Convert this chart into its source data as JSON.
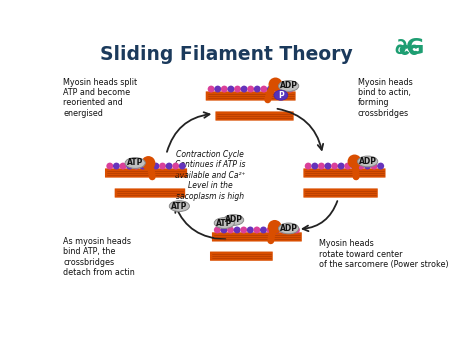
{
  "title": "Sliding Filament Theory",
  "title_color": "#1b3a5c",
  "title_fontsize": 13.5,
  "bg_color": "#ffffff",
  "orange_color": "#d94e00",
  "orange_dark": "#b03a00",
  "orange_stripe": "#e87030",
  "head_color": "#d94e00",
  "pink_color": "#d9409a",
  "purple_color": "#6633bb",
  "adp_fill": "#c8c8c8",
  "atp_fill": "#c8c8c8",
  "p_fill": "#5533bb",
  "arrow_color": "#222222",
  "text_color": "#111111",
  "center_text": "Contraction Cycle\nContinues if ATP is\navailable and Ca²⁺\nLevel in the\nsacoplasm is high",
  "label_tl": "Myosin heads split\nATP and become\nreoriented and\nenergised",
  "label_tr": "Myosin heads\nbind to actin,\nforming\ncrossbridges",
  "label_bl": "As myosin heads\nbind ATP, the\ncrossbridges\ndetach from actin",
  "label_br": "Myosin heads\nrotate toward center\nof the sarcomere (Power stroke)",
  "gg_color": "#1e9e72"
}
